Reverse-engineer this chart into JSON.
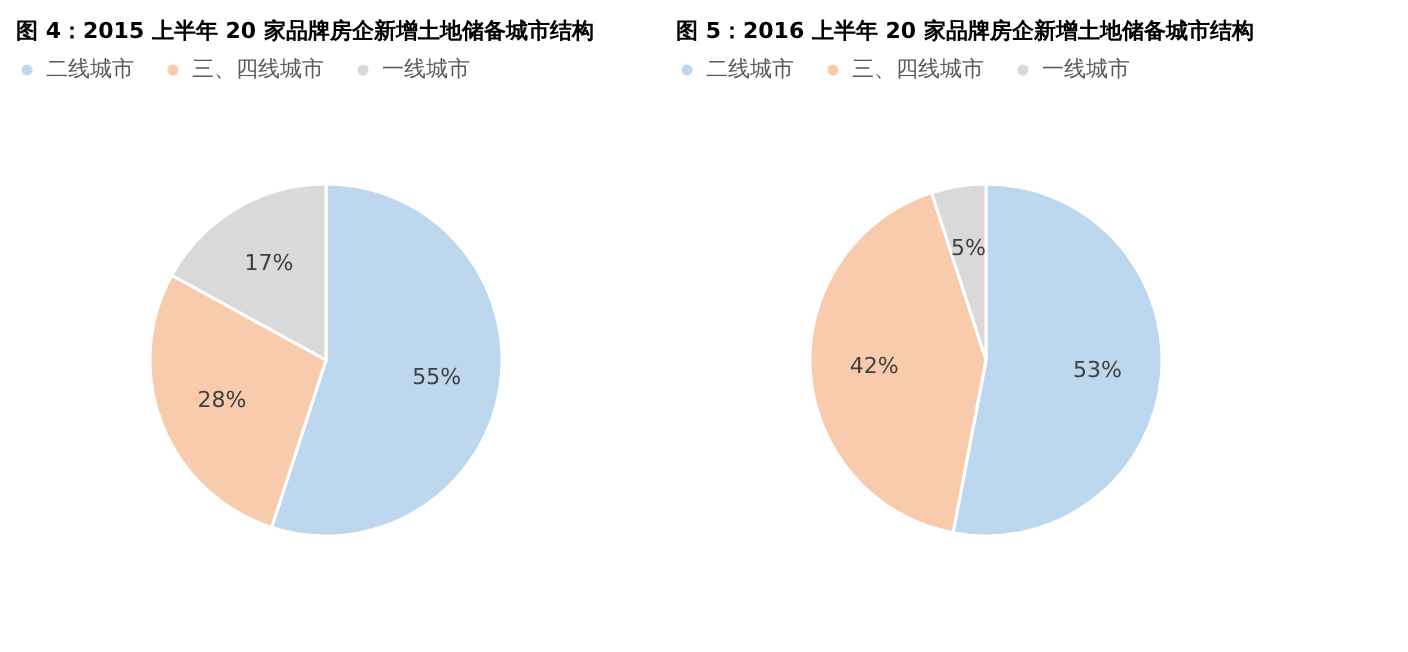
{
  "chart_data": [
    {
      "type": "pie",
      "title": "图 4：2015 上半年 20 家品牌房企新增土地储备城市结构",
      "categories": [
        "二线城市",
        "三、四线城市",
        "一线城市"
      ],
      "values": [
        55,
        28,
        17
      ],
      "value_labels": [
        "55%",
        "28%",
        "17%"
      ],
      "colors": [
        "#bdd7ee",
        "#f8cbad",
        "#d9d9d9"
      ],
      "legend": "top"
    },
    {
      "type": "pie",
      "title": "图 5：2016 上半年 20 家品牌房企新增土地储备城市结构",
      "categories": [
        "二线城市",
        "三、四线城市",
        "一线城市"
      ],
      "values": [
        53,
        42,
        5
      ],
      "value_labels": [
        "53%",
        "42%",
        "5%"
      ],
      "colors": [
        "#bdd7ee",
        "#f8cbad",
        "#d9d9d9"
      ],
      "legend": "top"
    }
  ]
}
